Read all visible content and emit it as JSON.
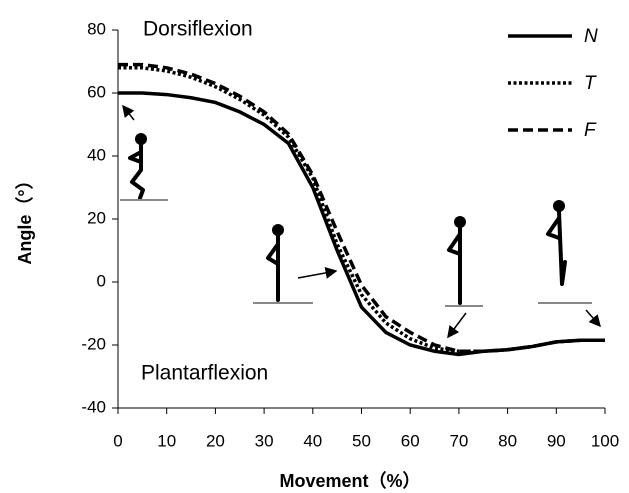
{
  "chart_data": {
    "type": "line",
    "x_label": "Movement（%）",
    "y_label": "Angle（°）",
    "annotations": [
      "Dorsiflexion",
      "Plantarflexion"
    ],
    "x": [
      0,
      5,
      10,
      15,
      20,
      25,
      30,
      35,
      40,
      45,
      50,
      55,
      60,
      65,
      70,
      75,
      80,
      85,
      90,
      95,
      100
    ],
    "series": [
      {
        "name": "N",
        "color": "#000000",
        "dash": "solid",
        "values": [
          60,
          60,
          59.5,
          58.5,
          57,
          54,
          50,
          44,
          30,
          10,
          -8,
          -16,
          -20,
          -22,
          -23,
          -22,
          -21.5,
          -20.5,
          -19,
          -18.5,
          -18.5
        ]
      },
      {
        "name": "T",
        "color": "#000000",
        "dash": "dotted",
        "values": [
          68,
          68,
          67,
          65,
          62,
          58,
          53,
          46,
          33,
          12,
          -4,
          -13,
          -18,
          -21,
          -22,
          -22,
          -21.5,
          -20.5,
          -19,
          -18.5,
          -18.5
        ]
      },
      {
        "name": "F",
        "color": "#000000",
        "dash": "dashed",
        "values": [
          69,
          69,
          68,
          66,
          63,
          59,
          54,
          47,
          34,
          16,
          -1,
          -11,
          -16,
          -20,
          -22,
          -22,
          -21.5,
          -20.5,
          -19,
          -18.5,
          -18.5
        ]
      }
    ],
    "xlim": [
      0,
      100
    ],
    "xticks": [
      0,
      10,
      20,
      30,
      40,
      50,
      60,
      70,
      80,
      90,
      100
    ],
    "ylim": [
      -40,
      80
    ],
    "yticks": [
      -40,
      -20,
      0,
      20,
      40,
      60,
      80
    ],
    "grid": false,
    "legend": "upper right"
  }
}
